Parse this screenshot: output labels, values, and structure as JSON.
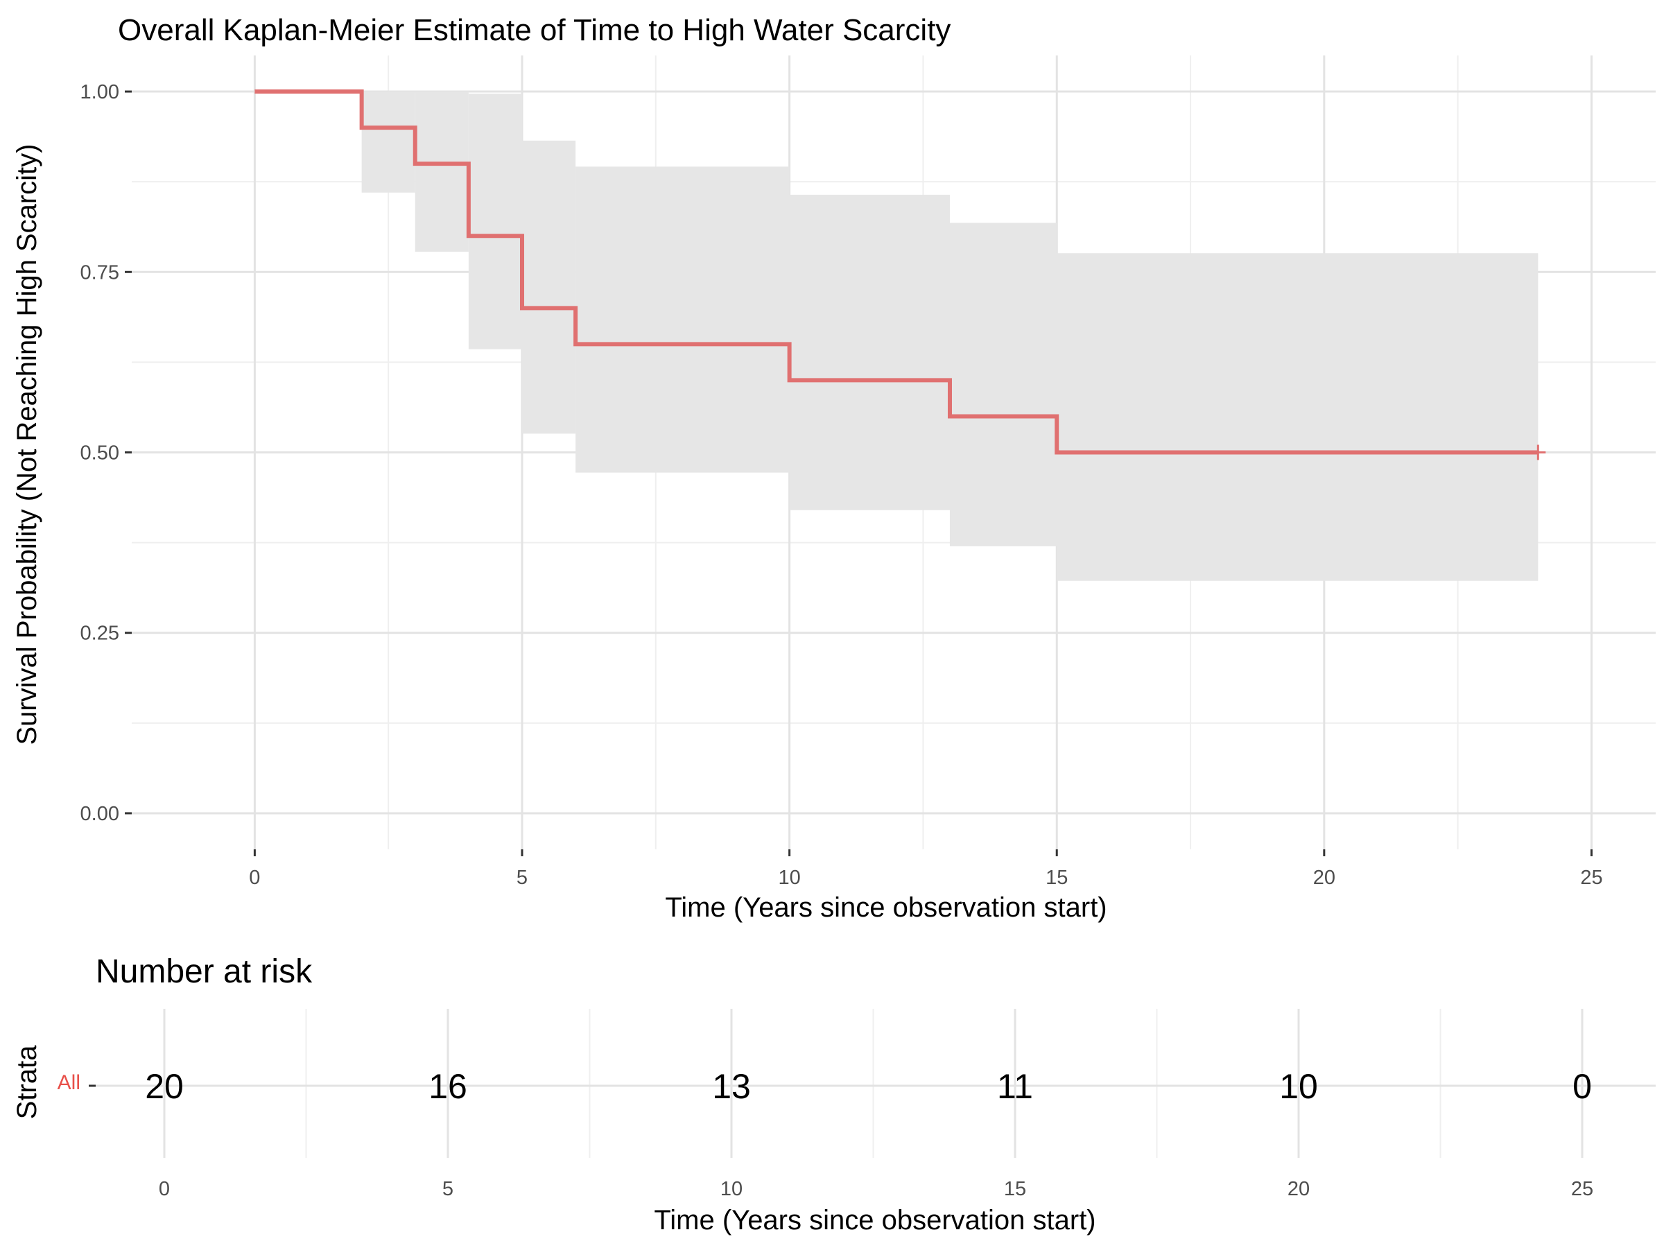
{
  "chart_data": [
    {
      "type": "line",
      "subtype": "kaplan-meier step curve with confidence band",
      "title": "Overall Kaplan-Meier Estimate of Time to High Water Scarcity",
      "xlabel": "Time (Years since observation start)",
      "ylabel": "Survival Probability (Not Reaching High Scarcity)",
      "xlim": [
        -2.3,
        26.2
      ],
      "ylim": [
        -0.05,
        1.05
      ],
      "x_ticks": [
        0,
        5,
        10,
        15,
        20,
        25
      ],
      "x_tick_labels": [
        "0",
        "5",
        "10",
        "15",
        "20",
        "25"
      ],
      "y_ticks": [
        0,
        0.25,
        0.5,
        0.75,
        1.0
      ],
      "y_tick_labels": [
        "0.00",
        "0.25",
        "0.50",
        "0.75",
        "1.00"
      ],
      "grid": true,
      "line_color": "#e07070",
      "band_color": "#e6e6e6",
      "series": [
        {
          "steps": [
            {
              "time": 0,
              "surv": 1.0,
              "lower": 1.0,
              "upper": 1.0
            },
            {
              "time": 2,
              "surv": 0.95,
              "lower": 0.86,
              "upper": 1.0
            },
            {
              "time": 3,
              "surv": 0.9,
              "lower": 0.778,
              "upper": 1.0
            },
            {
              "time": 4,
              "surv": 0.8,
              "lower": 0.643,
              "upper": 0.997
            },
            {
              "time": 5,
              "surv": 0.7,
              "lower": 0.526,
              "upper": 0.932
            },
            {
              "time": 6,
              "surv": 0.65,
              "lower": 0.472,
              "upper": 0.896
            },
            {
              "time": 10,
              "surv": 0.6,
              "lower": 0.42,
              "upper": 0.857
            },
            {
              "time": 13,
              "surv": 0.55,
              "lower": 0.37,
              "upper": 0.818
            },
            {
              "time": 15,
              "surv": 0.5,
              "lower": 0.322,
              "upper": 0.776
            }
          ],
          "end_time": 24,
          "censored": [
            {
              "time": 24,
              "surv": 0.5
            }
          ]
        }
      ]
    },
    {
      "type": "table",
      "title": "Number at risk",
      "xlabel": "Time (Years since observation start)",
      "ylabel": "Strata",
      "strata_label": "All",
      "strata_color": "#e8504a",
      "x_ticks": [
        0,
        5,
        10,
        15,
        20,
        25
      ],
      "x_tick_labels": [
        "0",
        "5",
        "10",
        "15",
        "20",
        "25"
      ],
      "values": [
        "20",
        "16",
        "13",
        "11",
        "10",
        "0"
      ]
    }
  ]
}
